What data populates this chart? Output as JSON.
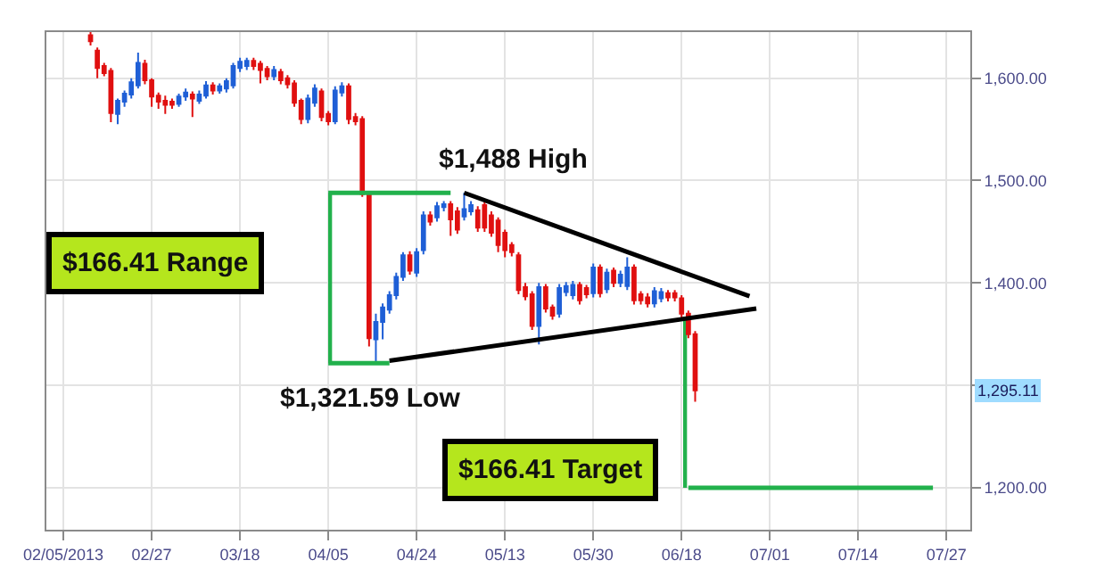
{
  "chart_data": {
    "type": "candlestick",
    "categories": [
      null,
      null,
      "02/05/2013",
      null,
      null,
      null,
      null,
      null,
      null,
      null,
      null,
      null,
      null,
      null,
      null,
      "02/27",
      null,
      null,
      null,
      null,
      null,
      null,
      null,
      null,
      null,
      null,
      null,
      null,
      "03/18",
      null,
      null,
      null,
      null,
      null,
      null,
      null,
      null,
      null,
      null,
      null,
      null,
      "04/05",
      null,
      null,
      null,
      null,
      null,
      null,
      null,
      null,
      null,
      null,
      null,
      null,
      "04/24",
      null,
      null,
      null,
      null,
      null,
      null,
      null,
      null,
      null,
      null,
      null,
      null,
      "05/13",
      null,
      null,
      null,
      null,
      null,
      null,
      null,
      null,
      null,
      null,
      null,
      null,
      "05/30",
      null,
      null,
      null,
      null,
      null,
      null,
      null,
      null,
      null,
      null,
      null,
      null,
      "06/18",
      null,
      null,
      null,
      null,
      null,
      null,
      null,
      null,
      null,
      null,
      null,
      null,
      "07/01",
      null,
      null,
      null,
      null,
      null,
      null,
      null,
      null,
      null,
      null,
      null,
      null,
      "07/14",
      null,
      null,
      null,
      null,
      null,
      null,
      null,
      null,
      null,
      null,
      null,
      null,
      "07/27",
      null,
      null,
      null
    ],
    "ohlc": [
      null,
      null,
      null,
      null,
      null,
      null,
      [
        1642,
        1645,
        1632,
        1636
      ],
      [
        1627,
        1630,
        1600,
        1610
      ],
      [
        1612,
        1615,
        1602,
        1605
      ],
      [
        1607,
        1610,
        1557,
        1566
      ],
      [
        1565,
        1580,
        1555,
        1578
      ],
      [
        1577,
        1588,
        1572,
        1585
      ],
      [
        1584,
        1600,
        1580,
        1596
      ],
      [
        1593,
        1625,
        1590,
        1615
      ],
      [
        1614,
        1618,
        1594,
        1598
      ],
      [
        1598,
        1600,
        1572,
        1582
      ],
      [
        1583,
        1586,
        1570,
        1577
      ],
      [
        1578,
        1583,
        1565,
        1574
      ],
      [
        1577,
        1580,
        1570,
        1574
      ],
      [
        1575,
        1585,
        1572,
        1582
      ],
      [
        1582,
        1590,
        1578,
        1586
      ],
      [
        1584,
        1587,
        1562,
        1580
      ],
      [
        1578,
        1588,
        1575,
        1584
      ],
      [
        1583,
        1597,
        1580,
        1593
      ],
      [
        1593,
        1596,
        1584,
        1588
      ],
      [
        1588,
        1595,
        1585,
        1592
      ],
      [
        1590,
        1600,
        1586,
        1597
      ],
      [
        1593,
        1615,
        1590,
        1612
      ],
      [
        1610,
        1620,
        1606,
        1616
      ],
      [
        1612,
        1620,
        1608,
        1617
      ],
      [
        1617,
        1620,
        1608,
        1612
      ],
      [
        1614,
        1617,
        1595,
        1608
      ],
      [
        1609,
        1612,
        1598,
        1602
      ],
      [
        1602,
        1612,
        1598,
        1608
      ],
      [
        1606,
        1609,
        1594,
        1598
      ],
      [
        1600,
        1603,
        1590,
        1594
      ],
      [
        1595,
        1598,
        1572,
        1576
      ],
      [
        1578,
        1580,
        1555,
        1560
      ],
      [
        1560,
        1584,
        1556,
        1580
      ],
      [
        1576,
        1594,
        1572,
        1590
      ],
      [
        1587,
        1590,
        1558,
        1562
      ],
      [
        1565,
        1568,
        1554,
        1558
      ],
      [
        1558,
        1592,
        1555,
        1588
      ],
      [
        1586,
        1596,
        1582,
        1592
      ],
      [
        1592,
        1595,
        1555,
        1560
      ],
      [
        1562,
        1566,
        1554,
        1558
      ],
      [
        1560,
        1563,
        1484,
        1487
      ],
      [
        1487,
        1490,
        1338,
        1346
      ],
      [
        1345,
        1370,
        1321.59,
        1362
      ],
      [
        1362,
        1380,
        1345,
        1376
      ],
      [
        1374,
        1392,
        1370,
        1388
      ],
      [
        1388,
        1410,
        1384,
        1406
      ],
      [
        1406,
        1430,
        1402,
        1427
      ],
      [
        1427,
        1431,
        1408,
        1412
      ],
      [
        1410,
        1434,
        1406,
        1430
      ],
      [
        1432,
        1470,
        1428,
        1466
      ],
      [
        1466,
        1470,
        1456,
        1460
      ],
      [
        1464,
        1479,
        1460,
        1475
      ],
      [
        1474,
        1480,
        1470,
        1477
      ],
      [
        1477,
        1480,
        1446,
        1462
      ],
      [
        1470,
        1474,
        1448,
        1452
      ],
      [
        1465,
        1488,
        1461,
        1472
      ],
      [
        1470,
        1480,
        1466,
        1476
      ],
      [
        1471,
        1475,
        1450,
        1454
      ],
      [
        1476,
        1479,
        1450,
        1454
      ],
      [
        1466,
        1470,
        1445,
        1449
      ],
      [
        1461,
        1464,
        1430,
        1437
      ],
      [
        1449,
        1452,
        1425,
        1432
      ],
      [
        1437,
        1440,
        1426,
        1430
      ],
      [
        1427,
        1430,
        1389,
        1393
      ],
      [
        1396,
        1400,
        1383,
        1387
      ],
      [
        1389,
        1392,
        1354,
        1358
      ],
      [
        1358,
        1400,
        1340,
        1396
      ],
      [
        1396,
        1399,
        1371,
        1375
      ],
      [
        1376,
        1379,
        1364,
        1368
      ],
      [
        1370,
        1399,
        1366,
        1395
      ],
      [
        1391,
        1401,
        1387,
        1397
      ],
      [
        1388,
        1402,
        1384,
        1398
      ],
      [
        1398,
        1401,
        1379,
        1383
      ],
      [
        1395,
        1398,
        1385,
        1389
      ],
      [
        1390,
        1419,
        1386,
        1415
      ],
      [
        1415,
        1418,
        1386,
        1390
      ],
      [
        1394,
        1414,
        1390,
        1410
      ],
      [
        1412,
        1415,
        1396,
        1400
      ],
      [
        1400,
        1412,
        1396,
        1408
      ],
      [
        1397,
        1425,
        1393,
        1415
      ],
      [
        1415,
        1418,
        1379,
        1383
      ],
      [
        1389,
        1392,
        1379,
        1383
      ],
      [
        1386,
        1390,
        1376,
        1380
      ],
      [
        1380,
        1396,
        1376,
        1392
      ],
      [
        1385,
        1395,
        1381,
        1391
      ],
      [
        1390,
        1393,
        1382,
        1386
      ],
      [
        1390,
        1393,
        1382,
        1386
      ],
      [
        1385,
        1388,
        1366,
        1370
      ],
      [
        1370,
        1373,
        1346,
        1350
      ],
      [
        1350,
        1353,
        1284,
        1295.11
      ],
      null,
      null,
      null,
      null,
      null,
      null,
      null,
      null,
      null,
      null,
      null,
      null,
      null,
      null,
      null,
      null,
      null,
      null,
      null,
      null,
      null,
      null,
      null,
      null,
      null,
      null,
      null,
      null,
      null,
      null,
      null,
      null,
      null,
      null,
      null,
      null,
      null,
      null,
      null,
      null
    ],
    "colors": [
      null,
      null,
      null,
      null,
      null,
      null,
      "#e01010",
      "#e01010",
      "#e01010",
      "#e01010",
      "#1f5fd6",
      "#1f5fd6",
      "#1f5fd6",
      "#1f5fd6",
      "#e01010",
      "#e01010",
      "#e01010",
      "#e01010",
      "#e01010",
      "#1f5fd6",
      "#1f5fd6",
      "#e01010",
      "#1f5fd6",
      "#1f5fd6",
      "#e01010",
      "#1f5fd6",
      "#1f5fd6",
      "#1f5fd6",
      "#1f5fd6",
      "#1f5fd6",
      "#e01010",
      "#e01010",
      "#e01010",
      "#1f5fd6",
      "#e01010",
      "#e01010",
      "#e01010",
      "#e01010",
      "#1f5fd6",
      "#1f5fd6",
      "#e01010",
      "#e01010",
      "#1f5fd6",
      "#1f5fd6",
      "#e01010",
      "#e01010",
      "#e01010",
      "#e01010",
      "#1f5fd6",
      "#1f5fd6",
      "#1f5fd6",
      "#1f5fd6",
      "#1f5fd6",
      "#e01010",
      "#1f5fd6",
      "#1f5fd6",
      "#e01010",
      "#1f5fd6",
      "#1f5fd6",
      "#e01010",
      "#e01010",
      "#1f5fd6",
      "#1f5fd6",
      "#e01010",
      "#e01010",
      "#e01010",
      "#e01010",
      "#e01010",
      "#e01010",
      "#e01010",
      "#e01010",
      "#e01010",
      "#1f5fd6",
      "#e01010",
      "#e01010",
      "#1f5fd6",
      "#1f5fd6",
      "#1f5fd6",
      "#e01010",
      "#e01010",
      "#1f5fd6",
      "#e01010",
      "#1f5fd6",
      "#e01010",
      "#1f5fd6",
      "#1f5fd6",
      "#e01010",
      "#e01010",
      "#e01010",
      "#1f5fd6",
      "#1f5fd6",
      "#e01010",
      "#e01010",
      "#e01010",
      "#e01010",
      "#e01010",
      null,
      null,
      null,
      null,
      null,
      null,
      null,
      null,
      null,
      null,
      null,
      null,
      null,
      null,
      null,
      null,
      null,
      null,
      null,
      null,
      null,
      null,
      null,
      null,
      null,
      null,
      null,
      null,
      null,
      null,
      null,
      null,
      null,
      null,
      null,
      null,
      null,
      null,
      null,
      null
    ],
    "series": [
      {
        "type": "line",
        "color": "#22b14c",
        "values": [
          null,
          null,
          null,
          null,
          null,
          null,
          null,
          null,
          null,
          null,
          null,
          null,
          null,
          null,
          null,
          null,
          null,
          null,
          null,
          null,
          null,
          null,
          null,
          null,
          null,
          null,
          null,
          null,
          null,
          null,
          null,
          null,
          null,
          null,
          null,
          null,
          null,
          null,
          null,
          null,
          null,
          1488,
          null,
          null,
          null,
          null,
          null,
          null,
          null,
          null,
          null,
          null,
          null,
          null,
          null,
          null,
          null,
          null,
          null,
          1488,
          null,
          null,
          null,
          null,
          null,
          null,
          null,
          null,
          null,
          null,
          null,
          null,
          null,
          null,
          null,
          null,
          null,
          null,
          null,
          null,
          null,
          null,
          null,
          null,
          null,
          null,
          null,
          null,
          null,
          null,
          null,
          null,
          null,
          null,
          null,
          null,
          null,
          null,
          null,
          null,
          null,
          null,
          null,
          null,
          null,
          null,
          null,
          null,
          null,
          null,
          null,
          null,
          null,
          null,
          null,
          null,
          null,
          null,
          null,
          null,
          null,
          null,
          null,
          null,
          null,
          null,
          null,
          null,
          null,
          null,
          null,
          null,
          null,
          null,
          null,
          null
        ]
      },
      {
        "type": "line",
        "color": "#22b14c",
        "values": [
          null,
          null,
          null,
          null,
          null,
          null,
          null,
          null,
          null,
          null,
          null,
          null,
          null,
          null,
          null,
          null,
          null,
          null,
          null,
          null,
          null,
          null,
          null,
          null,
          null,
          null,
          null,
          null,
          null,
          null,
          null,
          null,
          null,
          null,
          null,
          null,
          null,
          null,
          null,
          null,
          null,
          1321.59,
          null,
          null,
          null,
          null,
          null,
          null,
          null,
          null,
          1321.59,
          null,
          null,
          null,
          null,
          null,
          null,
          null,
          null,
          null,
          null,
          null,
          null,
          null,
          null,
          null,
          null,
          null,
          null,
          null,
          null,
          null,
          null,
          null,
          null,
          null,
          null,
          null,
          null,
          null,
          null,
          null,
          null,
          null,
          null,
          null,
          null,
          null,
          null,
          null,
          null,
          null,
          null,
          null,
          null,
          null,
          null,
          null,
          null,
          null,
          null,
          null,
          null,
          null,
          null,
          null,
          null,
          null,
          null,
          null,
          null,
          null,
          null,
          null,
          null,
          null,
          null,
          null,
          null,
          null,
          null,
          null,
          null,
          null,
          null,
          null,
          null,
          null,
          null,
          null,
          null,
          null,
          null,
          null,
          null,
          null
        ]
      },
      {
        "type": "bar",
        "color": "#22b14c",
        "values": [
          null,
          null,
          null,
          null,
          null,
          null,
          null,
          null,
          null,
          null,
          null,
          null,
          null,
          null,
          null,
          null,
          null,
          null,
          null,
          null,
          null,
          null,
          null,
          null,
          null,
          null,
          null,
          null,
          null,
          null,
          null,
          null,
          null,
          null,
          null,
          null,
          null,
          null,
          null,
          null,
          null,
          166.41,
          null,
          null,
          null,
          null,
          null,
          null,
          null,
          null,
          null,
          null,
          null,
          null,
          null,
          null,
          null,
          null,
          null,
          null,
          null,
          null,
          null,
          null,
          null,
          null,
          null,
          null,
          null,
          null,
          null,
          null,
          null,
          null,
          null,
          null,
          null,
          null,
          null,
          null,
          null,
          null,
          null,
          null,
          null,
          null,
          null,
          null,
          null,
          null,
          null,
          null,
          null,
          null,
          null,
          null,
          null,
          null,
          null,
          null,
          null,
          null,
          null,
          null,
          null,
          null,
          null,
          null,
          null,
          null,
          null,
          null,
          null,
          null,
          null,
          null,
          null,
          null,
          null,
          null,
          null,
          null,
          null,
          null,
          null,
          null,
          null,
          null,
          null,
          null,
          null,
          null,
          null,
          null,
          null,
          null
        ],
        "base": [
          null,
          null,
          null,
          null,
          null,
          null,
          null,
          null,
          null,
          null,
          null,
          null,
          null,
          null,
          null,
          null,
          null,
          null,
          null,
          null,
          null,
          null,
          null,
          null,
          null,
          null,
          null,
          null,
          null,
          null,
          null,
          null,
          null,
          null,
          null,
          null,
          null,
          null,
          null,
          null,
          null,
          1321.59,
          null,
          null,
          null,
          null,
          null,
          null,
          null,
          null,
          null,
          null,
          null,
          null,
          null,
          null,
          null,
          null,
          null,
          null,
          null,
          null,
          null,
          null,
          null,
          null,
          null,
          null,
          null,
          null,
          null,
          null,
          null,
          null,
          null,
          null,
          null,
          null,
          null,
          null,
          null,
          null,
          null,
          null,
          null,
          null,
          null,
          null,
          null,
          null,
          null,
          null,
          null,
          null,
          null,
          null,
          null,
          null,
          null,
          null,
          null,
          null,
          null,
          null,
          null,
          null,
          null,
          null,
          null,
          null,
          null,
          null,
          null,
          null,
          null,
          null,
          null,
          null,
          null,
          null,
          null,
          null,
          null,
          null,
          null,
          null,
          null,
          null,
          null,
          null,
          null,
          null,
          null,
          null,
          null,
          null
        ]
      },
      {
        "type": "line",
        "color": "#000000",
        "values": [
          null,
          null,
          null,
          null,
          null,
          null,
          null,
          null,
          null,
          null,
          null,
          null,
          null,
          null,
          null,
          null,
          null,
          null,
          null,
          null,
          null,
          null,
          null,
          null,
          null,
          null,
          null,
          null,
          null,
          null,
          null,
          null,
          null,
          null,
          null,
          null,
          null,
          null,
          null,
          null,
          null,
          null,
          null,
          null,
          null,
          null,
          null,
          null,
          null,
          null,
          null,
          null,
          null,
          null,
          null,
          null,
          null,
          null,
          null,
          null,
          null,
          1488,
          null,
          null,
          null,
          null,
          null,
          null,
          null,
          null,
          null,
          null,
          null,
          null,
          null,
          null,
          null,
          null,
          null,
          null,
          null,
          null,
          null,
          null,
          null,
          null,
          null,
          null,
          null,
          null,
          null,
          null,
          null,
          null,
          null,
          null,
          null,
          null,
          null,
          null,
          null,
          null,
          null,
          1387,
          null,
          null,
          null,
          null,
          null,
          null,
          null,
          null,
          null,
          null,
          null,
          null,
          null,
          null,
          null,
          null,
          null,
          null,
          null,
          null,
          null,
          null,
          null,
          null,
          null,
          null,
          null,
          null,
          null,
          null,
          null,
          null
        ]
      },
      {
        "type": "line",
        "color": "#000000",
        "values": [
          null,
          null,
          null,
          null,
          null,
          null,
          null,
          null,
          null,
          null,
          null,
          null,
          null,
          null,
          null,
          null,
          null,
          null,
          null,
          null,
          null,
          null,
          null,
          null,
          null,
          null,
          null,
          null,
          null,
          null,
          null,
          null,
          null,
          null,
          null,
          null,
          null,
          null,
          null,
          null,
          null,
          null,
          null,
          null,
          null,
          null,
          null,
          null,
          null,
          null,
          1324,
          null,
          null,
          null,
          null,
          null,
          null,
          null,
          null,
          null,
          null,
          null,
          null,
          null,
          null,
          null,
          null,
          null,
          null,
          null,
          null,
          null,
          null,
          null,
          null,
          null,
          null,
          null,
          null,
          null,
          null,
          null,
          null,
          null,
          null,
          null,
          null,
          null,
          null,
          null,
          null,
          null,
          null,
          null,
          null,
          null,
          null,
          null,
          null,
          null,
          null,
          null,
          null,
          null,
          1375,
          null,
          null,
          null,
          null,
          null,
          null,
          null,
          null,
          null,
          null,
          null,
          null,
          null,
          null,
          null,
          null,
          null,
          null,
          null,
          null,
          null,
          null,
          null,
          null,
          null,
          null,
          null,
          null,
          null,
          null,
          null
        ]
      },
      {
        "type": "bar",
        "color": "#22b14c",
        "values": [
          null,
          null,
          null,
          null,
          null,
          null,
          null,
          null,
          null,
          null,
          null,
          null,
          null,
          null,
          null,
          null,
          null,
          null,
          null,
          null,
          null,
          null,
          null,
          null,
          null,
          null,
          null,
          null,
          null,
          null,
          null,
          null,
          null,
          null,
          null,
          null,
          null,
          null,
          null,
          null,
          null,
          null,
          null,
          null,
          null,
          null,
          null,
          null,
          null,
          null,
          null,
          null,
          null,
          null,
          null,
          null,
          null,
          null,
          null,
          null,
          null,
          null,
          null,
          null,
          null,
          null,
          null,
          null,
          null,
          null,
          null,
          null,
          null,
          null,
          null,
          null,
          null,
          null,
          null,
          null,
          null,
          null,
          null,
          null,
          null,
          null,
          null,
          null,
          null,
          null,
          null,
          null,
          null,
          null,
          167,
          null,
          null,
          null,
          null,
          null,
          null,
          null,
          null,
          null,
          null,
          null,
          null,
          null,
          null,
          null,
          null,
          null,
          null,
          null,
          null,
          null,
          null,
          null,
          null,
          null,
          null,
          null,
          null,
          null,
          null,
          null,
          null,
          null,
          null,
          null,
          null,
          null,
          null,
          null,
          null,
          null
        ],
        "base": [
          null,
          null,
          null,
          null,
          null,
          null,
          null,
          null,
          null,
          null,
          null,
          null,
          null,
          null,
          null,
          null,
          null,
          null,
          null,
          null,
          null,
          null,
          null,
          null,
          null,
          null,
          null,
          null,
          null,
          null,
          null,
          null,
          null,
          null,
          null,
          null,
          null,
          null,
          null,
          null,
          null,
          null,
          null,
          null,
          null,
          null,
          null,
          null,
          null,
          null,
          null,
          null,
          null,
          null,
          null,
          null,
          null,
          null,
          null,
          null,
          null,
          null,
          null,
          null,
          null,
          null,
          null,
          null,
          null,
          null,
          null,
          null,
          null,
          null,
          null,
          null,
          null,
          null,
          null,
          null,
          null,
          null,
          null,
          null,
          null,
          null,
          null,
          null,
          null,
          null,
          null,
          null,
          null,
          null,
          1200,
          null,
          null,
          null,
          null,
          null,
          null,
          null,
          null,
          null,
          null,
          null,
          null,
          null,
          null,
          null,
          null,
          null,
          null,
          null,
          null,
          null,
          null,
          null,
          null,
          null,
          null,
          null,
          null,
          null,
          null,
          null,
          null,
          null,
          null,
          null,
          null,
          null,
          null,
          null,
          null,
          null
        ]
      },
      {
        "type": "line",
        "color": "#22b14c",
        "values": [
          null,
          null,
          null,
          null,
          null,
          null,
          null,
          null,
          null,
          null,
          null,
          null,
          null,
          null,
          null,
          null,
          null,
          null,
          null,
          null,
          null,
          null,
          null,
          null,
          null,
          null,
          null,
          null,
          null,
          null,
          null,
          null,
          null,
          null,
          null,
          null,
          null,
          null,
          null,
          null,
          null,
          null,
          null,
          null,
          null,
          null,
          null,
          null,
          null,
          null,
          null,
          null,
          null,
          null,
          null,
          null,
          null,
          null,
          null,
          null,
          null,
          null,
          null,
          null,
          null,
          null,
          null,
          null,
          null,
          null,
          null,
          null,
          null,
          null,
          null,
          null,
          null,
          null,
          null,
          null,
          null,
          null,
          null,
          null,
          null,
          null,
          null,
          null,
          null,
          null,
          null,
          null,
          null,
          null,
          1200,
          null,
          null,
          null,
          null,
          null,
          null,
          null,
          null,
          null,
          null,
          null,
          null,
          null,
          null,
          null,
          null,
          null,
          null,
          null,
          null,
          null,
          null,
          null,
          null,
          null,
          null,
          null,
          null,
          null,
          null,
          null,
          null,
          null,
          null,
          null,
          1200,
          null,
          null,
          null,
          null,
          null
        ]
      }
    ],
    "annotations": [
      "$1,488 High",
      "$1,321.59 Low",
      "$166.41 Range",
      "$166.41 Target",
      {
        "text": "1,295.11",
        "y": 1295.11
      }
    ],
    "ylim": [
      1159,
      1645
    ],
    "yticks": [
      {
        "value": 1200,
        "label": "1,200.00"
      },
      {
        "value": 1300,
        "label": null
      },
      {
        "value": 1400,
        "label": "1,400.00"
      },
      {
        "value": 1500,
        "label": "1,500.00"
      },
      {
        "value": 1600,
        "label": "1,600.00"
      }
    ],
    "grid": true
  }
}
